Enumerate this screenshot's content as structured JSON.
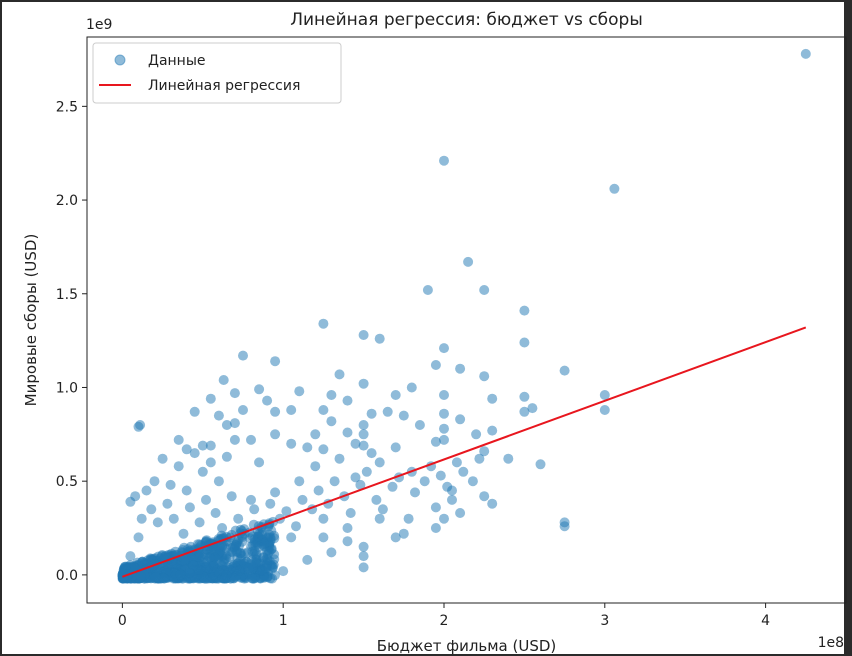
{
  "chart_data": {
    "type": "scatter",
    "title": "Линейная регрессия: бюджет vs сборы",
    "xlabel": "Бюджет фильма (USD)",
    "ylabel": "Мировые сборы (USD)",
    "x_offset_label": "1e8",
    "y_offset_label": "1e9",
    "xlim": [
      -0.22,
      4.5
    ],
    "ylim": [
      -0.15,
      2.87
    ],
    "x_ticks": [
      {
        "value": 0,
        "label": "0"
      },
      {
        "value": 1,
        "label": "1"
      },
      {
        "value": 2,
        "label": "2"
      },
      {
        "value": 3,
        "label": "3"
      },
      {
        "value": 4,
        "label": "4"
      }
    ],
    "y_ticks": [
      {
        "value": 0.0,
        "label": "0.0"
      },
      {
        "value": 0.5,
        "label": "0.5"
      },
      {
        "value": 1.0,
        "label": "1.0"
      },
      {
        "value": 1.5,
        "label": "1.5"
      },
      {
        "value": 2.0,
        "label": "2.0"
      },
      {
        "value": 2.5,
        "label": "2.5"
      }
    ],
    "grid": false,
    "legend_position": "top-left",
    "series": [
      {
        "name": "Данные",
        "kind": "scatter",
        "color": "#1f77b4",
        "points": [
          [
            4.25,
            2.78
          ],
          [
            2.0,
            2.21
          ],
          [
            3.06,
            2.06
          ],
          [
            2.15,
            1.67
          ],
          [
            1.9,
            1.52
          ],
          [
            2.25,
            1.52
          ],
          [
            2.5,
            1.41
          ],
          [
            1.25,
            1.34
          ],
          [
            1.5,
            1.28
          ],
          [
            1.6,
            1.26
          ],
          [
            2.5,
            1.24
          ],
          [
            2.0,
            1.21
          ],
          [
            0.75,
            1.17
          ],
          [
            1.95,
            1.12
          ],
          [
            2.1,
            1.1
          ],
          [
            2.75,
            1.09
          ],
          [
            0.95,
            1.14
          ],
          [
            1.35,
            1.07
          ],
          [
            2.25,
            1.06
          ],
          [
            0.63,
            1.04
          ],
          [
            1.5,
            1.02
          ],
          [
            1.8,
            1.0
          ],
          [
            3.0,
            0.96
          ],
          [
            2.0,
            0.96
          ],
          [
            1.1,
            0.98
          ],
          [
            0.85,
            0.99
          ],
          [
            0.7,
            0.97
          ],
          [
            1.3,
            0.96
          ],
          [
            1.4,
            0.93
          ],
          [
            0.55,
            0.94
          ],
          [
            2.5,
            0.95
          ],
          [
            2.3,
            0.94
          ],
          [
            1.7,
            0.96
          ],
          [
            0.9,
            0.93
          ],
          [
            3.0,
            0.88
          ],
          [
            2.55,
            0.89
          ],
          [
            2.5,
            0.87
          ],
          [
            2.0,
            0.86
          ],
          [
            1.55,
            0.86
          ],
          [
            1.65,
            0.87
          ],
          [
            1.05,
            0.88
          ],
          [
            1.25,
            0.88
          ],
          [
            0.95,
            0.87
          ],
          [
            0.75,
            0.88
          ],
          [
            0.6,
            0.85
          ],
          [
            0.45,
            0.87
          ],
          [
            1.75,
            0.85
          ],
          [
            2.1,
            0.83
          ],
          [
            0.1,
            0.79
          ],
          [
            0.11,
            0.8
          ],
          [
            0.7,
            0.81
          ],
          [
            1.3,
            0.82
          ],
          [
            1.5,
            0.8
          ],
          [
            1.85,
            0.8
          ],
          [
            2.0,
            0.78
          ],
          [
            2.3,
            0.77
          ],
          [
            2.2,
            0.75
          ],
          [
            1.4,
            0.76
          ],
          [
            0.95,
            0.75
          ],
          [
            0.4,
            0.67
          ],
          [
            0.5,
            0.69
          ],
          [
            0.55,
            0.69
          ],
          [
            0.7,
            0.72
          ],
          [
            1.05,
            0.7
          ],
          [
            1.15,
            0.68
          ],
          [
            1.25,
            0.67
          ],
          [
            1.5,
            0.69
          ],
          [
            1.7,
            0.68
          ],
          [
            1.95,
            0.71
          ],
          [
            2.0,
            0.72
          ],
          [
            2.25,
            0.66
          ],
          [
            2.4,
            0.62
          ],
          [
            2.6,
            0.59
          ],
          [
            2.75,
            0.28
          ],
          [
            2.75,
            0.26
          ],
          [
            2.25,
            0.42
          ],
          [
            2.3,
            0.38
          ],
          [
            2.05,
            0.45
          ],
          [
            1.95,
            0.36
          ],
          [
            2.1,
            0.33
          ],
          [
            1.8,
            0.55
          ],
          [
            1.75,
            0.22
          ],
          [
            1.5,
            0.04
          ],
          [
            1.45,
            0.52
          ],
          [
            1.6,
            0.6
          ],
          [
            1.35,
            0.62
          ],
          [
            1.4,
            0.25
          ],
          [
            1.2,
            0.58
          ],
          [
            1.25,
            0.3
          ],
          [
            1.1,
            0.5
          ],
          [
            1.05,
            0.2
          ],
          [
            0.95,
            0.44
          ],
          [
            1.0,
            0.02
          ],
          [
            0.85,
            0.6
          ],
          [
            0.8,
            0.4
          ],
          [
            0.78,
            0.12
          ],
          [
            0.65,
            0.63
          ],
          [
            0.6,
            0.5
          ],
          [
            0.5,
            0.55
          ],
          [
            0.4,
            0.45
          ],
          [
            0.35,
            0.58
          ],
          [
            0.25,
            0.62
          ],
          [
            0.3,
            0.48
          ],
          [
            0.2,
            0.5
          ],
          [
            0.15,
            0.45
          ],
          [
            0.05,
            0.39
          ],
          [
            0.08,
            0.42
          ],
          [
            0.12,
            0.3
          ],
          [
            0.18,
            0.35
          ],
          [
            0.22,
            0.28
          ],
          [
            0.28,
            0.38
          ],
          [
            0.32,
            0.3
          ],
          [
            0.38,
            0.22
          ],
          [
            0.42,
            0.36
          ],
          [
            0.48,
            0.28
          ],
          [
            0.52,
            0.4
          ],
          [
            0.58,
            0.33
          ],
          [
            0.62,
            0.25
          ],
          [
            0.68,
            0.42
          ],
          [
            0.72,
            0.3
          ],
          [
            0.76,
            0.22
          ],
          [
            0.82,
            0.35
          ],
          [
            0.88,
            0.27
          ],
          [
            0.92,
            0.38
          ],
          [
            0.98,
            0.3
          ],
          [
            1.02,
            0.34
          ],
          [
            1.08,
            0.26
          ],
          [
            1.12,
            0.4
          ],
          [
            1.18,
            0.35
          ],
          [
            1.22,
            0.45
          ],
          [
            1.28,
            0.38
          ],
          [
            1.32,
            0.5
          ],
          [
            1.38,
            0.42
          ],
          [
            1.42,
            0.33
          ],
          [
            1.48,
            0.48
          ],
          [
            1.52,
            0.55
          ],
          [
            1.58,
            0.4
          ],
          [
            1.62,
            0.35
          ],
          [
            1.68,
            0.47
          ],
          [
            1.72,
            0.52
          ],
          [
            1.78,
            0.3
          ],
          [
            1.82,
            0.44
          ],
          [
            1.88,
            0.5
          ],
          [
            1.92,
            0.58
          ],
          [
            1.98,
            0.53
          ],
          [
            2.02,
            0.47
          ],
          [
            2.08,
            0.6
          ],
          [
            2.12,
            0.55
          ],
          [
            2.18,
            0.5
          ],
          [
            2.22,
            0.62
          ],
          [
            1.5,
            0.75
          ],
          [
            1.45,
            0.7
          ],
          [
            1.55,
            0.65
          ],
          [
            1.2,
            0.75
          ],
          [
            0.65,
            0.8
          ],
          [
            0.8,
            0.72
          ],
          [
            0.35,
            0.72
          ],
          [
            0.45,
            0.65
          ],
          [
            0.55,
            0.6
          ],
          [
            1.5,
            0.1
          ],
          [
            1.5,
            0.15
          ],
          [
            1.3,
            0.12
          ],
          [
            1.15,
            0.08
          ],
          [
            0.9,
            0.06
          ],
          [
            0.85,
            0.15
          ],
          [
            1.25,
            0.2
          ],
          [
            1.4,
            0.18
          ],
          [
            1.7,
            0.2
          ],
          [
            1.6,
            0.3
          ],
          [
            1.95,
            0.25
          ],
          [
            2.0,
            0.3
          ],
          [
            2.05,
            0.4
          ],
          [
            0.05,
            0.1
          ],
          [
            0.1,
            0.2
          ]
        ],
        "dense_cluster": {
          "x_range": [
            0.0,
            0.95
          ],
          "y_range": [
            -0.02,
            0.3
          ],
          "count": 900
        }
      },
      {
        "name": "Линейная регрессия",
        "kind": "line",
        "color": "#e8161e",
        "x": [
          0.0,
          4.25
        ],
        "y": [
          -0.01,
          1.32
        ]
      }
    ]
  }
}
